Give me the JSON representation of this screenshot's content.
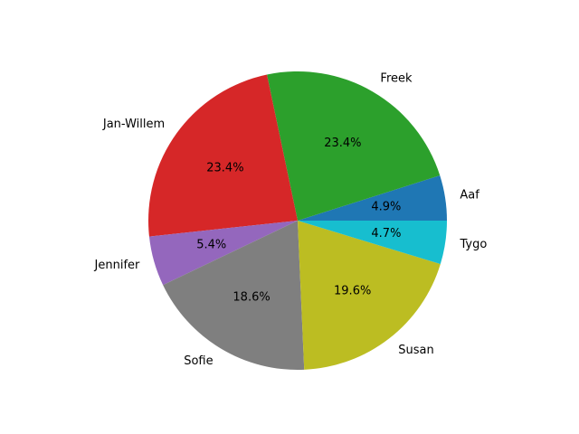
{
  "chart_data": {
    "type": "pie",
    "title": "",
    "start_angle_deg": 0,
    "direction": "counterclockwise",
    "legend": "none",
    "slices": [
      {
        "label": "Aaf",
        "value": 4.9,
        "pct_text": "4.9%",
        "color": "#1f77b4"
      },
      {
        "label": "Freek",
        "value": 23.4,
        "pct_text": "23.4%",
        "color": "#2ca02c"
      },
      {
        "label": "Jan-Willem",
        "value": 23.4,
        "pct_text": "23.4%",
        "color": "#d62728"
      },
      {
        "label": "Jennifer",
        "value": 5.4,
        "pct_text": "5.4%",
        "color": "#9467bd"
      },
      {
        "label": "Sofie",
        "value": 18.6,
        "pct_text": "18.6%",
        "color": "#7f7f7f"
      },
      {
        "label": "Susan",
        "value": 19.6,
        "pct_text": "19.6%",
        "color": "#bcbd22"
      },
      {
        "label": "Tygo",
        "value": 4.7,
        "pct_text": "4.7%",
        "color": "#17becf"
      }
    ]
  }
}
